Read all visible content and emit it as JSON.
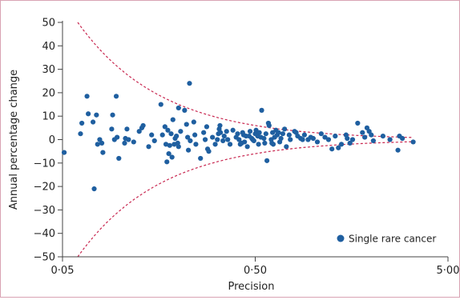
{
  "chart_data": {
    "type": "scatter",
    "title": "",
    "xlabel": "Precision",
    "ylabel": "Annual percentage change",
    "x_scale": "log",
    "xlim": [
      0.05,
      5.0
    ],
    "ylim": [
      -50,
      50
    ],
    "x_ticks": [
      {
        "value": 0.05,
        "label": "0·05"
      },
      {
        "value": 0.5,
        "label": "0·50"
      },
      {
        "value": 5.0,
        "label": "5·00"
      }
    ],
    "y_ticks": [
      {
        "value": 50,
        "label": "50"
      },
      {
        "value": 40,
        "label": "40"
      },
      {
        "value": 30,
        "label": "30"
      },
      {
        "value": 20,
        "label": "20"
      },
      {
        "value": 10,
        "label": "10"
      },
      {
        "value": 0,
        "label": "0"
      },
      {
        "value": -10,
        "label": "−10"
      },
      {
        "value": -20,
        "label": "−20"
      },
      {
        "value": -30,
        "label": "−30"
      },
      {
        "value": -40,
        "label": "−40"
      },
      {
        "value": -50,
        "label": "−50"
      }
    ],
    "legend": {
      "position": "bottom-right",
      "label": "Single rare cancer"
    },
    "colors": {
      "points": "#1f5fa0",
      "funnel": "#c8264f",
      "frame": "#d9a3b3"
    },
    "funnel_limits": {
      "style": "dashed",
      "x_range": [
        0.06,
        3.3
      ]
    },
    "points": [
      [
        0.051,
        -5.5
      ],
      [
        0.062,
        2.5
      ],
      [
        0.063,
        7.0
      ],
      [
        0.067,
        18.5
      ],
      [
        0.068,
        11.0
      ],
      [
        0.072,
        7.5
      ],
      [
        0.073,
        -21.0
      ],
      [
        0.075,
        10.5
      ],
      [
        0.076,
        -2.0
      ],
      [
        0.078,
        0.0
      ],
      [
        0.081,
        -5.5
      ],
      [
        0.08,
        -1.5
      ],
      [
        0.09,
        4.5
      ],
      [
        0.091,
        10.5
      ],
      [
        0.095,
        18.5
      ],
      [
        0.098,
        -8.0
      ],
      [
        0.096,
        1.0
      ],
      [
        0.093,
        0.0
      ],
      [
        0.108,
        4.5
      ],
      [
        0.106,
        0.5
      ],
      [
        0.105,
        -1.5
      ],
      [
        0.11,
        0.0
      ],
      [
        0.117,
        -1.0
      ],
      [
        0.129,
        5.0
      ],
      [
        0.131,
        6.0
      ],
      [
        0.125,
        3.5
      ],
      [
        0.145,
        2.0
      ],
      [
        0.15,
        -0.5
      ],
      [
        0.14,
        -3.0
      ],
      [
        0.162,
        15.0
      ],
      [
        0.165,
        2.0
      ],
      [
        0.17,
        5.5
      ],
      [
        0.172,
        -2.0
      ],
      [
        0.174,
        -9.5
      ],
      [
        0.176,
        4.0
      ],
      [
        0.178,
        -6.0
      ],
      [
        0.18,
        -2.5
      ],
      [
        0.183,
        2.5
      ],
      [
        0.185,
        -7.5
      ],
      [
        0.187,
        8.5
      ],
      [
        0.19,
        -2.0
      ],
      [
        0.192,
        0.5
      ],
      [
        0.195,
        1.5
      ],
      [
        0.2,
        13.5
      ],
      [
        0.198,
        -1.5
      ],
      [
        0.205,
        3.5
      ],
      [
        0.2,
        -3.0
      ],
      [
        0.215,
        12.5
      ],
      [
        0.22,
        6.5
      ],
      [
        0.223,
        1.0
      ],
      [
        0.225,
        -4.5
      ],
      [
        0.228,
        24.0
      ],
      [
        0.23,
        -0.5
      ],
      [
        0.24,
        7.5
      ],
      [
        0.243,
        2.0
      ],
      [
        0.246,
        -2.0
      ],
      [
        0.26,
        -8.0
      ],
      [
        0.27,
        3.0
      ],
      [
        0.275,
        0.0
      ],
      [
        0.28,
        5.5
      ],
      [
        0.283,
        -4.0
      ],
      [
        0.287,
        -5.0
      ],
      [
        0.3,
        1.0
      ],
      [
        0.31,
        -2.0
      ],
      [
        0.318,
        0.0
      ],
      [
        0.322,
        2.5
      ],
      [
        0.325,
        4.5
      ],
      [
        0.328,
        6.0
      ],
      [
        0.33,
        3.0
      ],
      [
        0.34,
        -0.5
      ],
      [
        0.345,
        1.5
      ],
      [
        0.355,
        3.5
      ],
      [
        0.36,
        0.0
      ],
      [
        0.37,
        -2.0
      ],
      [
        0.383,
        4.0
      ],
      [
        0.398,
        1.0
      ],
      [
        0.405,
        2.5
      ],
      [
        0.412,
        0.0
      ],
      [
        0.418,
        -2.0
      ],
      [
        0.425,
        -1.5
      ],
      [
        0.43,
        3.0
      ],
      [
        0.435,
        2.0
      ],
      [
        0.44,
        -1.0
      ],
      [
        0.448,
        1.5
      ],
      [
        0.455,
        -3.0
      ],
      [
        0.465,
        1.5
      ],
      [
        0.47,
        3.5
      ],
      [
        0.48,
        0.5
      ],
      [
        0.485,
        0.0
      ],
      [
        0.492,
        -0.5
      ],
      [
        0.5,
        2.5
      ],
      [
        0.505,
        4.0
      ],
      [
        0.515,
        1.5
      ],
      [
        0.52,
        -2.0
      ],
      [
        0.525,
        3.0
      ],
      [
        0.535,
        1.0
      ],
      [
        0.54,
        12.5
      ],
      [
        0.555,
        0.5
      ],
      [
        0.56,
        -1.5
      ],
      [
        0.568,
        2.5
      ],
      [
        0.575,
        -9.0
      ],
      [
        0.585,
        7.0
      ],
      [
        0.59,
        6.0
      ],
      [
        0.605,
        0.0
      ],
      [
        0.61,
        -1.5
      ],
      [
        0.615,
        3.0
      ],
      [
        0.62,
        -2.0
      ],
      [
        0.63,
        1.0
      ],
      [
        0.64,
        4.0
      ],
      [
        0.65,
        2.0
      ],
      [
        0.66,
        3.0
      ],
      [
        0.67,
        -1.0
      ],
      [
        0.68,
        0.5
      ],
      [
        0.695,
        2.5
      ],
      [
        0.71,
        4.5
      ],
      [
        0.725,
        -3.0
      ],
      [
        0.75,
        2.0
      ],
      [
        0.76,
        0.0
      ],
      [
        0.8,
        3.5
      ],
      [
        0.815,
        3.0
      ],
      [
        0.83,
        1.5
      ],
      [
        0.86,
        0.5
      ],
      [
        0.88,
        0.0
      ],
      [
        0.9,
        2.0
      ],
      [
        0.94,
        0.0
      ],
      [
        0.97,
        1.0
      ],
      [
        1.0,
        0.5
      ],
      [
        1.05,
        -1.0
      ],
      [
        1.1,
        2.5
      ],
      [
        1.15,
        1.0
      ],
      [
        1.2,
        0.0
      ],
      [
        1.25,
        -4.0
      ],
      [
        1.3,
        1.5
      ],
      [
        1.35,
        -3.5
      ],
      [
        1.4,
        -2.0
      ],
      [
        1.48,
        2.0
      ],
      [
        1.5,
        0.5
      ],
      [
        1.55,
        -1.5
      ],
      [
        1.6,
        0.0
      ],
      [
        1.7,
        7.0
      ],
      [
        1.8,
        3.0
      ],
      [
        1.85,
        1.0
      ],
      [
        1.9,
        5.0
      ],
      [
        1.95,
        3.5
      ],
      [
        2.0,
        2.0
      ],
      [
        2.05,
        -0.5
      ],
      [
        2.3,
        1.5
      ],
      [
        2.5,
        0.0
      ],
      [
        2.75,
        -4.5
      ],
      [
        2.8,
        1.5
      ],
      [
        2.9,
        0.5
      ],
      [
        3.3,
        -1.0
      ]
    ]
  }
}
